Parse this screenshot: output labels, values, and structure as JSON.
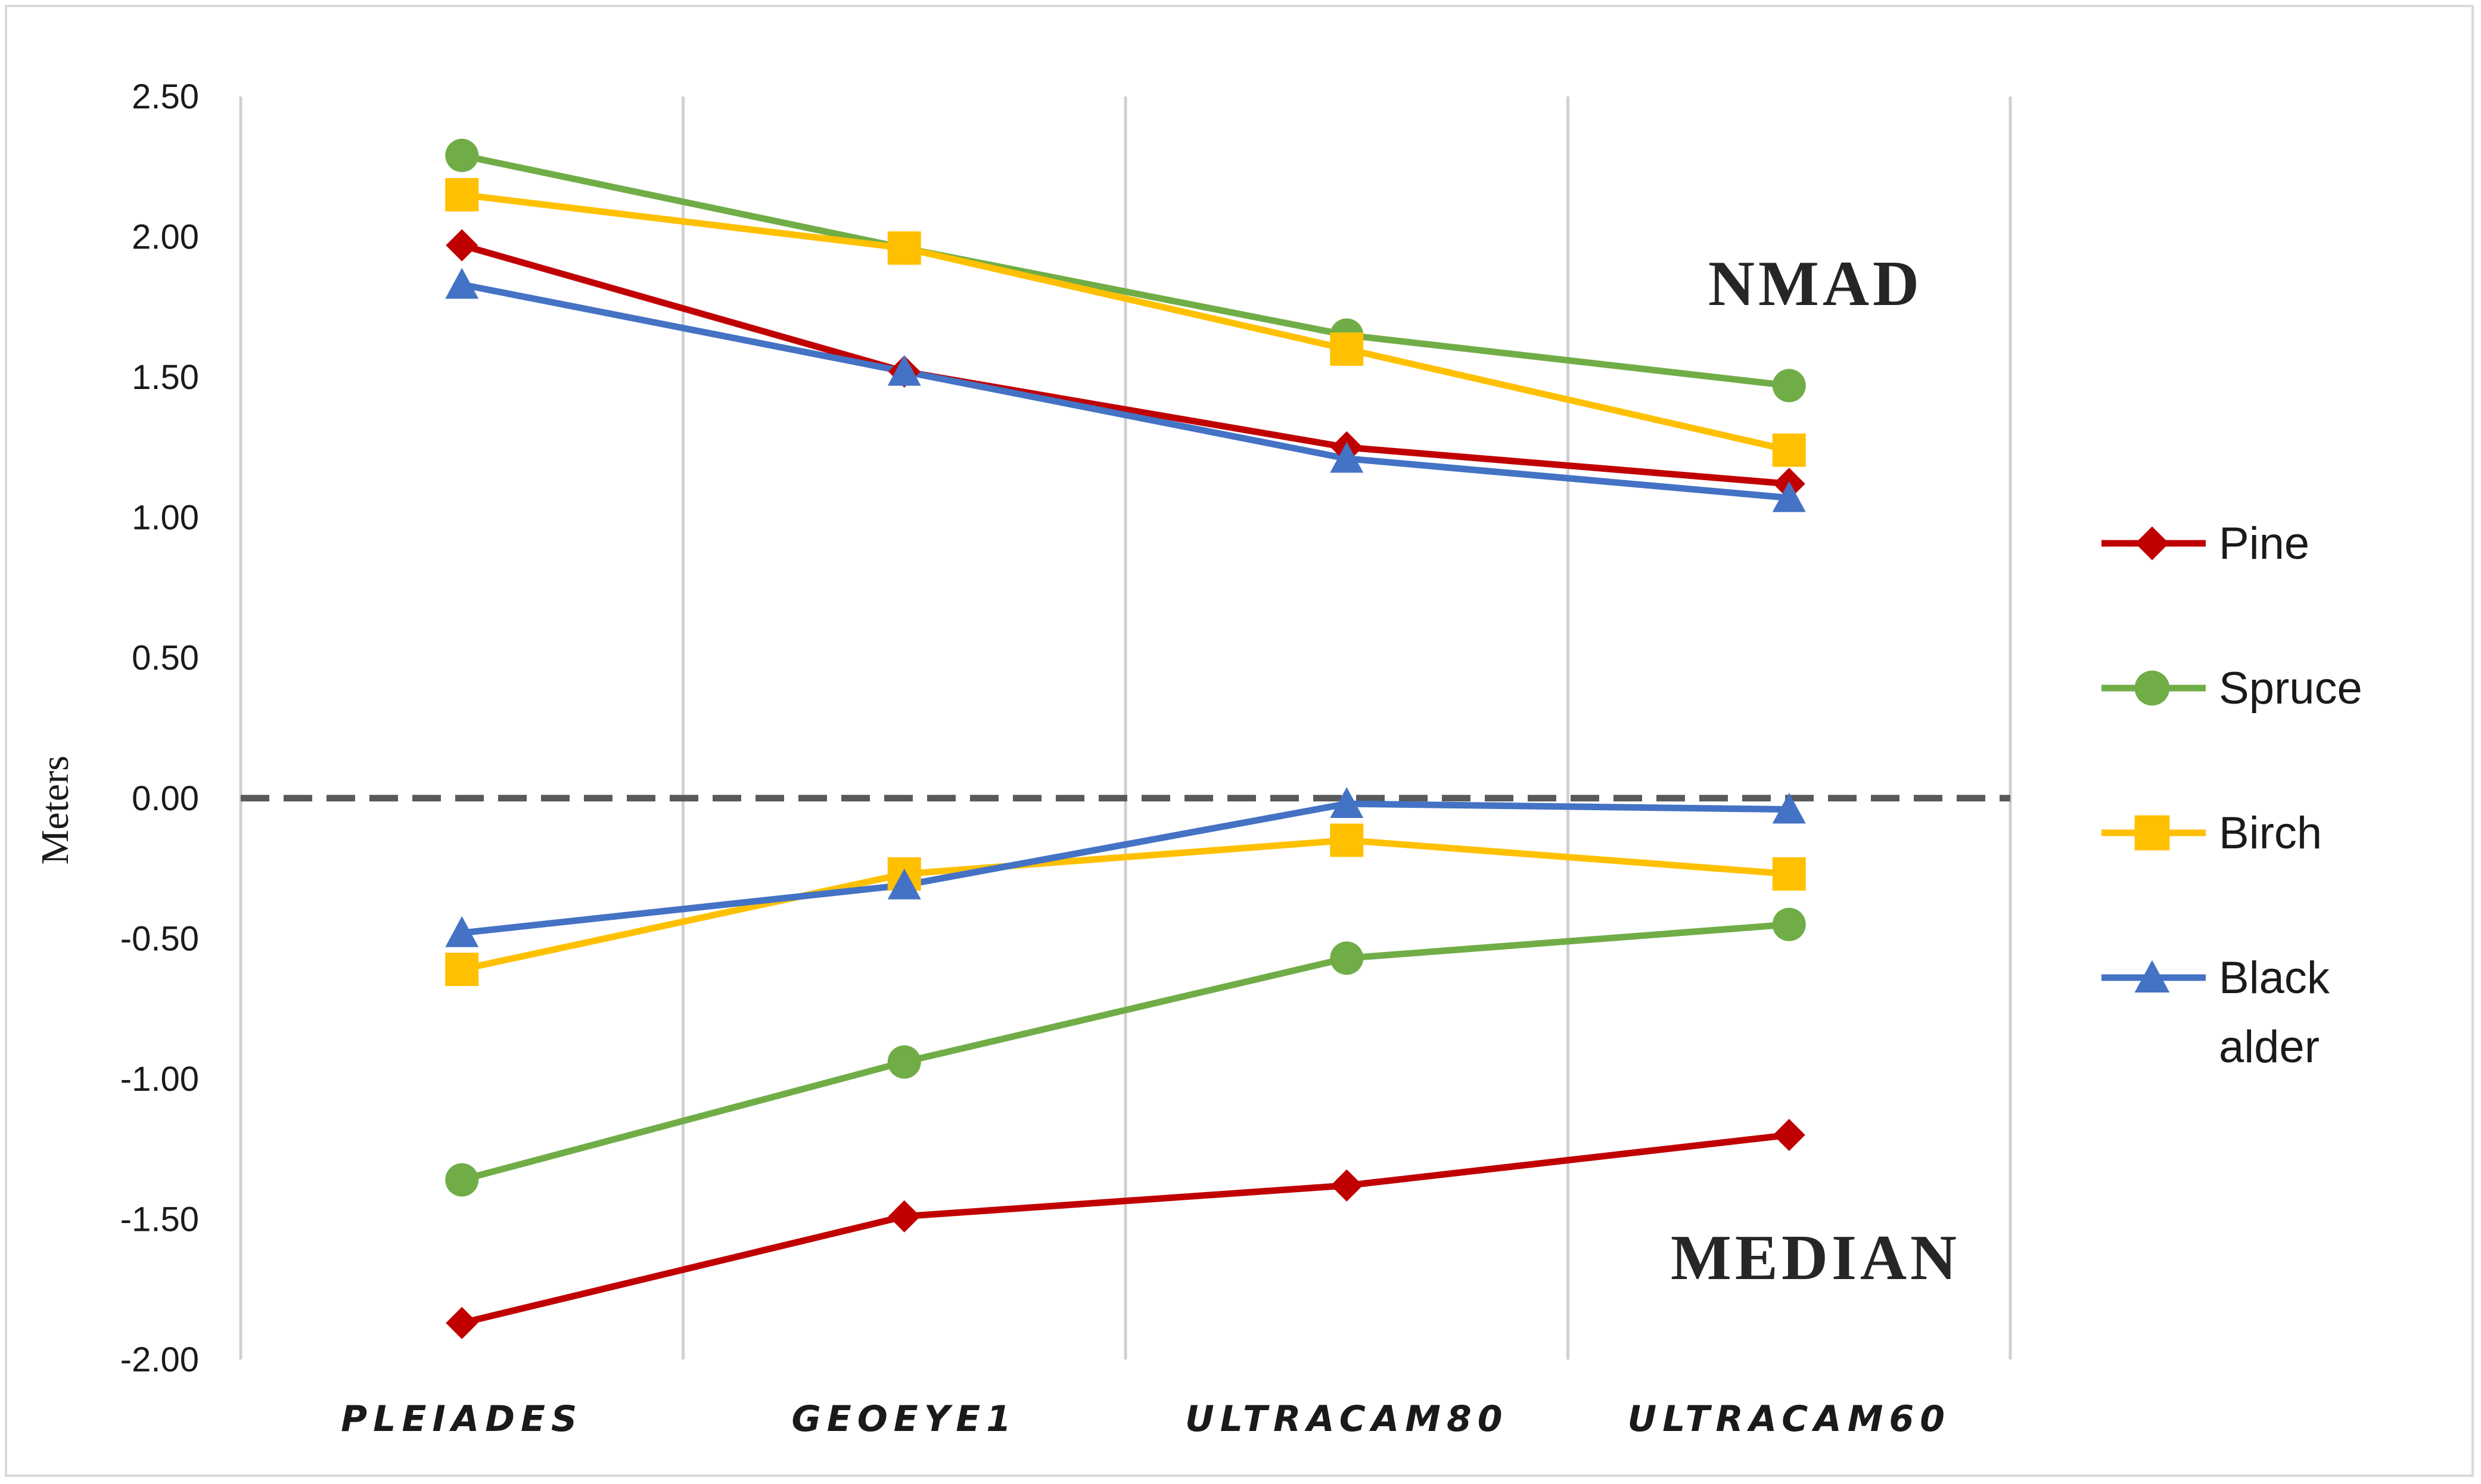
{
  "chart_data": {
    "type": "line",
    "title": "",
    "xlabel": "",
    "ylabel": "Meters",
    "ylim": [
      -2.0,
      2.5
    ],
    "yticks": [
      2.5,
      2.0,
      1.5,
      1.0,
      0.5,
      0.0,
      -0.5,
      -1.0,
      -1.5,
      -2.0
    ],
    "ytick_labels": [
      "2.50",
      "2.00",
      "1.50",
      "1.00",
      "0.50",
      "0.00",
      "-0.50",
      "-1.00",
      "-1.50",
      "-2.00"
    ],
    "categories": [
      "PLEIADES",
      "GEOEYE1",
      "ULTRACAM80",
      "ULTRACAM60"
    ],
    "grid": "vertical",
    "reference_line": {
      "value": 0.0,
      "style": "dashed",
      "color": "#595959"
    },
    "annotations": [
      {
        "text": "NMAD"
      },
      {
        "text": "MEDIAN"
      }
    ],
    "legend": {
      "position": "right",
      "entries": [
        {
          "label": "Pine",
          "label_lines": [
            "Pine"
          ]
        },
        {
          "label": "Spruce",
          "label_lines": [
            "Spruce"
          ]
        },
        {
          "label": "Birch",
          "label_lines": [
            "Birch"
          ]
        },
        {
          "label": "Black alder",
          "label_lines": [
            "Black",
            "alder"
          ]
        }
      ]
    },
    "series": [
      {
        "name": "Pine",
        "group": "NMAD",
        "color": "#c00000",
        "marker": "diamond",
        "values": [
          1.97,
          1.52,
          1.25,
          1.12
        ]
      },
      {
        "name": "Spruce",
        "group": "NMAD",
        "color": "#70ad47",
        "marker": "circle",
        "values": [
          2.29,
          1.96,
          1.65,
          1.47
        ]
      },
      {
        "name": "Birch",
        "group": "NMAD",
        "color": "#ffc000",
        "marker": "square",
        "values": [
          2.15,
          1.96,
          1.6,
          1.24
        ]
      },
      {
        "name": "Black alder",
        "group": "NMAD",
        "color": "#4472c4",
        "marker": "triangle",
        "values": [
          1.83,
          1.52,
          1.21,
          1.07
        ]
      },
      {
        "name": "Pine",
        "group": "MEDIAN",
        "color": "#c00000",
        "marker": "diamond",
        "values": [
          -1.87,
          -1.49,
          -1.38,
          -1.2
        ]
      },
      {
        "name": "Spruce",
        "group": "MEDIAN",
        "color": "#70ad47",
        "marker": "circle",
        "values": [
          -1.36,
          -0.94,
          -0.57,
          -0.45
        ]
      },
      {
        "name": "Birch",
        "group": "MEDIAN",
        "color": "#ffc000",
        "marker": "square",
        "values": [
          -0.61,
          -0.27,
          -0.15,
          -0.27
        ]
      },
      {
        "name": "Black alder",
        "group": "MEDIAN",
        "color": "#4472c4",
        "marker": "triangle",
        "values": [
          -0.48,
          -0.31,
          -0.02,
          -0.04
        ]
      }
    ]
  }
}
